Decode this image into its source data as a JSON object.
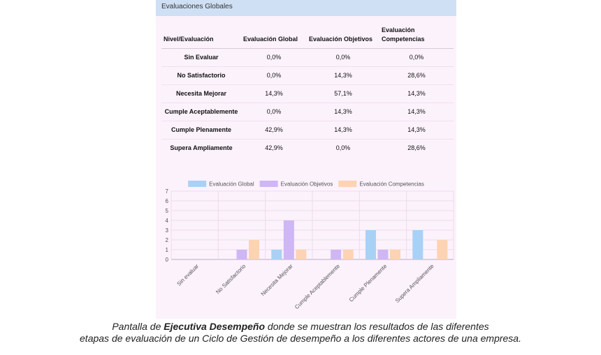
{
  "panel": {
    "title": "Evaluaciones Globales"
  },
  "table": {
    "headers": [
      "Nivel/Evaluación",
      "Evaluación Global",
      "Evaluación Objetivos",
      "Evaluación Competencias"
    ],
    "rows": [
      {
        "level": "Sin Evaluar",
        "global": "0,0%",
        "objetivos": "0,0%",
        "competencias": "0,0%"
      },
      {
        "level": "No Satisfactorio",
        "global": "0,0%",
        "objetivos": "14,3%",
        "competencias": "28,6%"
      },
      {
        "level": "Necesita Mejorar",
        "global": "14,3%",
        "objetivos": "57,1%",
        "competencias": "14,3%"
      },
      {
        "level": "Cumple Aceptablemente",
        "global": "0,0%",
        "objetivos": "14,3%",
        "competencias": "14,3%"
      },
      {
        "level": "Cumple Plenamente",
        "global": "42,9%",
        "objetivos": "14,3%",
        "competencias": "14,3%"
      },
      {
        "level": "Supera Ampliamente",
        "global": "42,9%",
        "objetivos": "0,0%",
        "competencias": "28,6%"
      }
    ]
  },
  "chart_data": {
    "type": "bar",
    "categories": [
      "Sin evaluar",
      "No Satisfactorio",
      "Necesita Mejorar",
      "Cumple Aceptablemente",
      "Cumple Plenamente",
      "Supera Ampliamente"
    ],
    "series": [
      {
        "name": "Evaluación Global",
        "values": [
          0,
          0,
          1,
          0,
          3,
          3
        ],
        "color": "#a9d1f5"
      },
      {
        "name": "Evaluación Objetivos",
        "values": [
          0,
          1,
          4,
          1,
          1,
          0
        ],
        "color": "#cfb6f5"
      },
      {
        "name": "Evaluación Competencias",
        "values": [
          0,
          2,
          1,
          1,
          1,
          2
        ],
        "color": "#fdd3b3"
      }
    ],
    "ylim": [
      0,
      7
    ],
    "yticks": [
      "0",
      "1",
      "2",
      "3",
      "4",
      "5",
      "6",
      "7"
    ],
    "legend": "top",
    "title": "",
    "xlabel": "",
    "ylabel": ""
  },
  "caption": {
    "prefix": "Pantalla de ",
    "bold": "Ejecutiva Desempeño",
    "line1_rest": " donde se muestran los resultados de las diferentes",
    "line2": "etapas de evaluación de un Ciclo de Gestión de desempeño a los diferentes actores de una empresa."
  }
}
